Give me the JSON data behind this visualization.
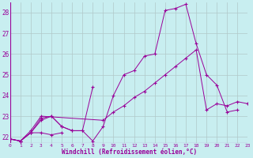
{
  "xlabel": "Windchill (Refroidissement éolien,°C)",
  "bg_color": "#c8eef0",
  "line_color": "#990099",
  "grid_color": "#b0c8c8",
  "xlim": [
    0,
    23
  ],
  "ylim": [
    21.7,
    28.5
  ],
  "xticks": [
    0,
    1,
    2,
    3,
    4,
    5,
    6,
    7,
    8,
    9,
    10,
    11,
    12,
    13,
    14,
    15,
    16,
    17,
    18,
    19,
    20,
    21,
    22,
    23
  ],
  "yticks": [
    22,
    23,
    24,
    25,
    26,
    27,
    28
  ],
  "series": [
    {
      "x": [
        0,
        1,
        2,
        3,
        4,
        5
      ],
      "y": [
        21.9,
        21.8,
        22.2,
        22.2,
        22.1,
        22.2
      ]
    },
    {
      "x": [
        0,
        1,
        2,
        3,
        4,
        5,
        6,
        7,
        8
      ],
      "y": [
        21.9,
        21.8,
        22.2,
        22.8,
        23.0,
        22.5,
        22.3,
        22.3,
        24.4
      ]
    },
    {
      "x": [
        0,
        1,
        2,
        3,
        4,
        5,
        6,
        7,
        8,
        9,
        10,
        11,
        12,
        13,
        14,
        15,
        16,
        17,
        18,
        19,
        20,
        21,
        22
      ],
      "y": [
        21.9,
        21.8,
        22.2,
        22.9,
        23.0,
        22.5,
        22.3,
        22.3,
        21.8,
        22.5,
        24.0,
        25.0,
        25.2,
        25.9,
        26.0,
        28.1,
        28.2,
        28.4,
        26.5,
        25.0,
        24.5,
        23.2,
        23.3
      ]
    },
    {
      "x": [
        0,
        1,
        2,
        3,
        9,
        10,
        11,
        12,
        13,
        14,
        15,
        16,
        17,
        18,
        19,
        20,
        21,
        22,
        23
      ],
      "y": [
        21.9,
        21.8,
        22.3,
        23.0,
        22.8,
        23.2,
        23.5,
        23.9,
        24.2,
        24.6,
        25.0,
        25.4,
        25.8,
        26.2,
        23.3,
        23.6,
        23.5,
        23.7,
        23.6
      ]
    }
  ]
}
